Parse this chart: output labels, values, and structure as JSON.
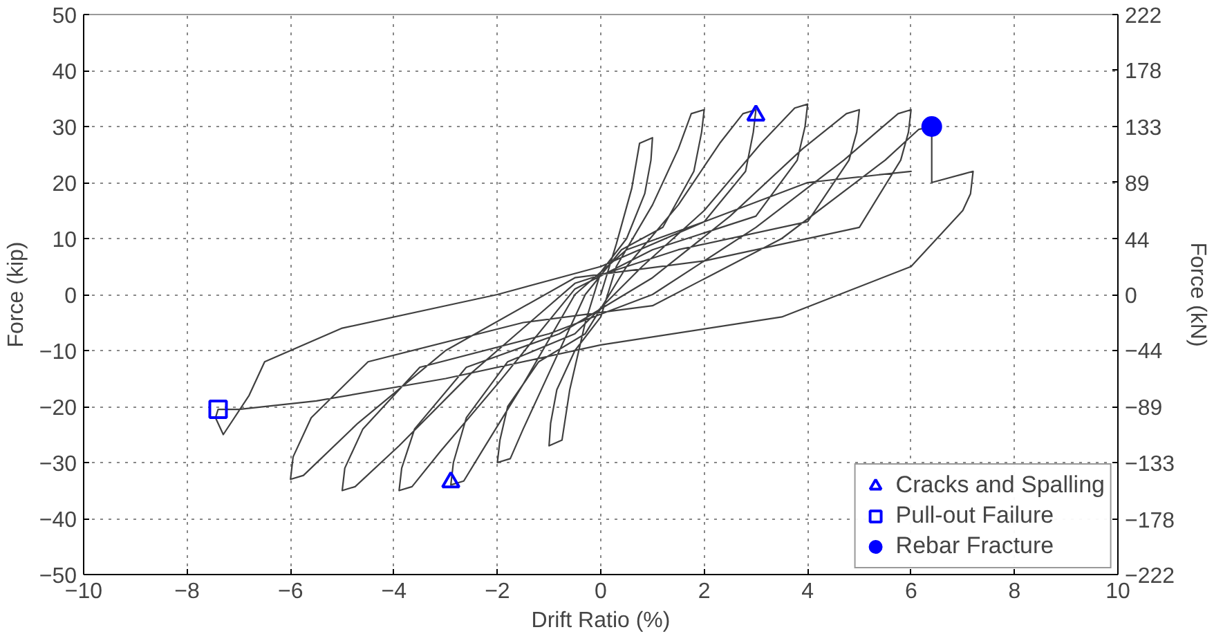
{
  "chart_data": {
    "type": "line",
    "xlabel": "Drift Ratio (%)",
    "ylabel": "Force (kip)",
    "y2label": "Force (kN)",
    "xlim": [
      -10,
      10
    ],
    "xticks": [
      -10,
      -8,
      -6,
      -4,
      -2,
      0,
      2,
      4,
      6,
      8,
      10
    ],
    "ylim": [
      -50,
      50
    ],
    "yticks": [
      -50,
      -40,
      -30,
      -20,
      -10,
      0,
      10,
      20,
      30,
      40,
      50
    ],
    "y2lim": [
      -222,
      222
    ],
    "y2ticks": [
      -222,
      -178,
      -133,
      -89,
      -44,
      0,
      44,
      89,
      133,
      178,
      222
    ],
    "grid": true,
    "legend": "bottom right",
    "series": [
      {
        "type": "line",
        "color": "#404040",
        "marker": "none",
        "line_style": "solid",
        "x": [
          0,
          0.3,
          0.6,
          0.75,
          1.0,
          0.97,
          0.85,
          0.5,
          0,
          -0.3,
          -0.6,
          -0.75,
          -1.0,
          -0.97,
          -0.85,
          -0.5,
          0,
          0.3,
          1.0,
          1.5,
          1.75,
          2.0,
          1.95,
          1.8,
          1.2,
          0.4,
          -0.3,
          -1.0,
          -1.5,
          -1.75,
          -2.0,
          -1.95,
          -1.8,
          -1.2,
          -0.3,
          0.5,
          1.5,
          2.3,
          2.75,
          3.0,
          2.95,
          2.8,
          2.0,
          0.5,
          -0.5,
          -1.5,
          -2.3,
          -2.65,
          -2.9,
          -2.85,
          -2.6,
          -1.8,
          -0.5,
          0.8,
          2.0,
          3.1,
          3.75,
          4.0,
          3.95,
          3.8,
          3.0,
          1.0,
          -0.5,
          -2.0,
          -3.1,
          -3.65,
          -3.9,
          -3.85,
          -3.6,
          -2.6,
          -0.8,
          1.0,
          2.5,
          3.9,
          4.75,
          5.0,
          4.95,
          4.8,
          4.0,
          1.5,
          -0.5,
          -2.5,
          -3.9,
          -4.75,
          -5.0,
          -4.95,
          -4.6,
          -3.5,
          -1.0,
          1.0,
          3.0,
          4.7,
          5.75,
          6.0,
          5.95,
          5.8,
          5.0,
          2.0,
          -0.5,
          -3.0,
          -4.7,
          -5.75,
          -6.0,
          -5.95,
          -5.6,
          -4.5,
          -1.5,
          1.0,
          3.5,
          5.5,
          6.15,
          6.4,
          6.4,
          7.0,
          7.2,
          7.15,
          7.0,
          6.0,
          3.5,
          0,
          -3.0,
          -5.5,
          -7.0,
          -7.4,
          -7.45,
          -7.3,
          -6.8,
          -6.5,
          -5.0,
          -2.0,
          0,
          2.0,
          4.0,
          6.0
        ],
        "values": [
          0,
          9,
          19,
          27,
          28,
          24,
          18,
          10,
          4,
          -5,
          -17,
          -26,
          -27,
          -23,
          -17,
          -10,
          -4,
          5,
          16,
          26,
          32.3,
          33,
          29,
          22,
          12,
          8,
          0,
          -14,
          -24,
          -29.3,
          -30,
          -26,
          -20,
          -12,
          -7,
          5,
          16,
          27,
          32.3,
          33,
          29,
          22,
          13,
          8,
          0,
          -16,
          -28,
          -33.3,
          -34,
          -30,
          -22,
          -12,
          -7,
          5,
          15,
          27,
          33.3,
          34,
          30,
          24,
          14,
          8,
          1,
          -16,
          -28,
          -34.3,
          -35,
          -31,
          -24,
          -13,
          -7,
          3,
          14,
          26,
          32.3,
          33,
          29,
          24,
          13,
          8,
          2,
          -14,
          -27,
          -34.3,
          -35,
          -31,
          -24,
          -13,
          -7,
          0,
          12,
          24,
          32.3,
          33,
          29,
          24,
          12,
          6,
          3,
          -10,
          -23,
          -32.3,
          -33,
          -29,
          -22,
          -12,
          -5,
          -2,
          10,
          24,
          29.5,
          30,
          20,
          21.5,
          22,
          18,
          15,
          5,
          -4,
          -9,
          -15,
          -19,
          -20.5,
          -20.5,
          -22,
          -25,
          -18,
          -12,
          -6,
          0,
          5,
          13,
          20,
          22
        ]
      },
      {
        "type": "scatter",
        "name": "Cracks and Spalling",
        "color": "#0000ff",
        "marker": "triangle",
        "x": [
          3.0,
          -2.9
        ],
        "values": [
          32,
          -33.5
        ]
      },
      {
        "type": "scatter",
        "name": "Pull-out Failure",
        "color": "#0000ff",
        "marker": "square",
        "x": [
          -7.4
        ],
        "values": [
          -20.5
        ]
      },
      {
        "type": "scatter",
        "name": "Rebar Fracture",
        "color": "#0000ff",
        "marker": "circle",
        "x": [
          6.4
        ],
        "values": [
          30
        ]
      }
    ]
  }
}
